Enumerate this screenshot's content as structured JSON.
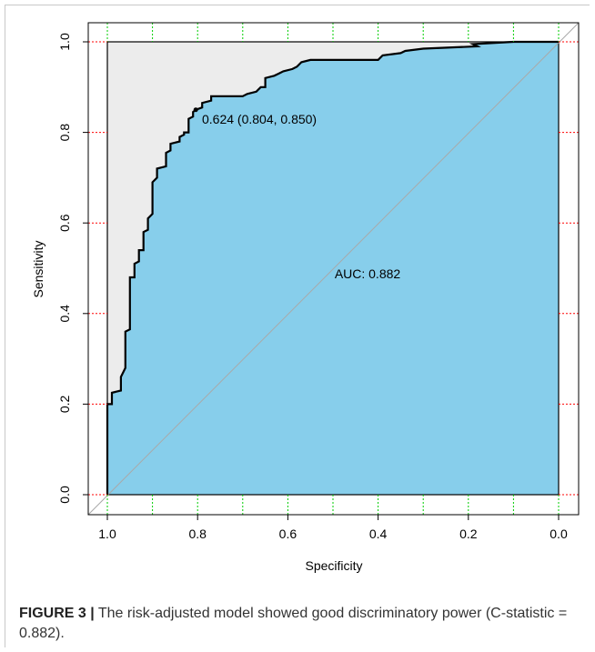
{
  "chart_data": {
    "type": "line",
    "xlabel": "Specificity",
    "ylabel": "Sensitivity",
    "xlim": [
      1.0,
      0.0
    ],
    "ylim": [
      0.0,
      1.0
    ],
    "x_reversed": true,
    "x_ticks": [
      "1.0",
      "0.8",
      "0.6",
      "0.4",
      "0.2",
      "0.0"
    ],
    "y_ticks": [
      "0.0",
      "0.2",
      "0.4",
      "0.6",
      "0.8",
      "1.0"
    ],
    "auc_label": "AUC: 0.882",
    "threshold_label": "0.624 (0.804, 0.850)",
    "threshold_point": {
      "specificity": 0.804,
      "sensitivity": 0.85
    },
    "colors": {
      "auc_fill": "#87ceeb",
      "background_fill": "#ececec",
      "curve": "#000000",
      "diagonal": "#a9a9a9",
      "y_grid_marks": "#ff0000",
      "x_grid_marks": "#00cc00"
    },
    "x_grid_specificity": [
      1.0,
      0.9,
      0.8,
      0.7,
      0.6,
      0.5,
      0.4,
      0.3,
      0.2,
      0.1,
      0.0
    ],
    "y_grid_sensitivity": [
      0.0,
      0.2,
      0.4,
      0.6,
      0.8,
      1.0
    ],
    "series": [
      {
        "points": [
          [
            1.0,
            0.0
          ],
          [
            1.0,
            0.2
          ],
          [
            0.99,
            0.2
          ],
          [
            0.99,
            0.225
          ],
          [
            0.97,
            0.23
          ],
          [
            0.97,
            0.26
          ],
          [
            0.96,
            0.28
          ],
          [
            0.96,
            0.36
          ],
          [
            0.95,
            0.365
          ],
          [
            0.95,
            0.48
          ],
          [
            0.94,
            0.48
          ],
          [
            0.94,
            0.51
          ],
          [
            0.93,
            0.515
          ],
          [
            0.93,
            0.54
          ],
          [
            0.92,
            0.54
          ],
          [
            0.92,
            0.58
          ],
          [
            0.91,
            0.585
          ],
          [
            0.91,
            0.61
          ],
          [
            0.9,
            0.62
          ],
          [
            0.9,
            0.69
          ],
          [
            0.89,
            0.7
          ],
          [
            0.89,
            0.72
          ],
          [
            0.87,
            0.725
          ],
          [
            0.87,
            0.755
          ],
          [
            0.86,
            0.76
          ],
          [
            0.86,
            0.775
          ],
          [
            0.84,
            0.78
          ],
          [
            0.84,
            0.79
          ],
          [
            0.83,
            0.795
          ],
          [
            0.83,
            0.8
          ],
          [
            0.82,
            0.8
          ],
          [
            0.82,
            0.83
          ],
          [
            0.81,
            0.835
          ],
          [
            0.81,
            0.845
          ],
          [
            0.804,
            0.85
          ],
          [
            0.79,
            0.855
          ],
          [
            0.79,
            0.865
          ],
          [
            0.77,
            0.87
          ],
          [
            0.77,
            0.88
          ],
          [
            0.7,
            0.88
          ],
          [
            0.69,
            0.885
          ],
          [
            0.67,
            0.89
          ],
          [
            0.66,
            0.9
          ],
          [
            0.65,
            0.9
          ],
          [
            0.65,
            0.92
          ],
          [
            0.63,
            0.925
          ],
          [
            0.62,
            0.93
          ],
          [
            0.61,
            0.935
          ],
          [
            0.59,
            0.94
          ],
          [
            0.58,
            0.945
          ],
          [
            0.57,
            0.955
          ],
          [
            0.55,
            0.96
          ],
          [
            0.4,
            0.96
          ],
          [
            0.39,
            0.97
          ],
          [
            0.35,
            0.975
          ],
          [
            0.34,
            0.98
          ],
          [
            0.3,
            0.985
          ],
          [
            0.18,
            0.99
          ],
          [
            0.19,
            0.995
          ],
          [
            0.1,
            1.0
          ],
          [
            0.0,
            1.0
          ]
        ]
      }
    ]
  },
  "caption": {
    "label": "FIGURE 3 |",
    "text": " The risk-adjusted model showed good discriminatory power (C-statistic = 0.882)."
  }
}
